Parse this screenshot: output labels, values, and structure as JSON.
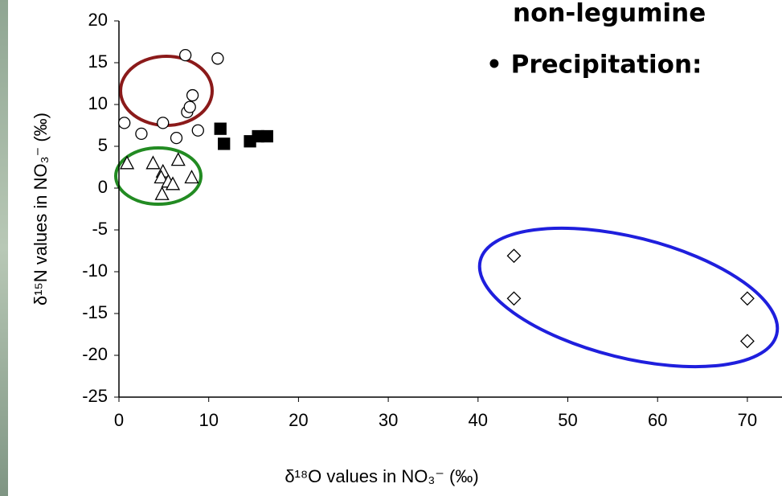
{
  "chart_data": {
    "type": "scatter",
    "xlabel": "δ¹⁸O values in NO₃⁻ (‰)",
    "ylabel": "δ¹⁵N values in NO₃⁻ (‰)",
    "annotations": [
      {
        "text": "non-legumine",
        "color": "#7b3f00"
      },
      {
        "text": "• Precipitation:",
        "color": "#3333cc"
      }
    ],
    "xlim": [
      0,
      74
    ],
    "xticks": [
      0,
      10,
      20,
      30,
      40,
      50,
      60,
      70
    ],
    "ylim": [
      -25,
      20
    ],
    "yticks": [
      -25,
      -20,
      -15,
      -10,
      -5,
      0,
      5,
      10,
      15,
      20
    ],
    "series": [
      {
        "marker": "circle",
        "color": "#000000",
        "fill": "#ffffff",
        "x": [
          0.6,
          2.5,
          4.9,
          6.4,
          7.4,
          7.6,
          7.9,
          8.2,
          8.8,
          11.0
        ],
        "values": [
          7.8,
          6.5,
          7.8,
          6.0,
          15.9,
          9.1,
          9.7,
          11.1,
          6.9,
          15.5
        ]
      },
      {
        "marker": "square",
        "color": "#000000",
        "fill": "#000000",
        "x": [
          11.3,
          11.7,
          14.6,
          15.5,
          16.5
        ],
        "values": [
          7.1,
          5.3,
          5.6,
          6.2,
          6.2
        ]
      },
      {
        "marker": "triangle",
        "color": "#000000",
        "fill": "#ffffff",
        "x": [
          0.9,
          3.8,
          4.9,
          4.7,
          5.5,
          6.0,
          4.8,
          6.6,
          8.1
        ],
        "values": [
          3.0,
          3.0,
          2.0,
          1.3,
          0.8,
          0.5,
          -0.7,
          3.4,
          1.3
        ]
      },
      {
        "marker": "diamond",
        "color": "#000000",
        "fill": "#ffffff",
        "x": [
          44,
          44,
          70,
          70
        ],
        "values": [
          -8.1,
          -13.2,
          -13.2,
          -18.3
        ]
      }
    ]
  }
}
